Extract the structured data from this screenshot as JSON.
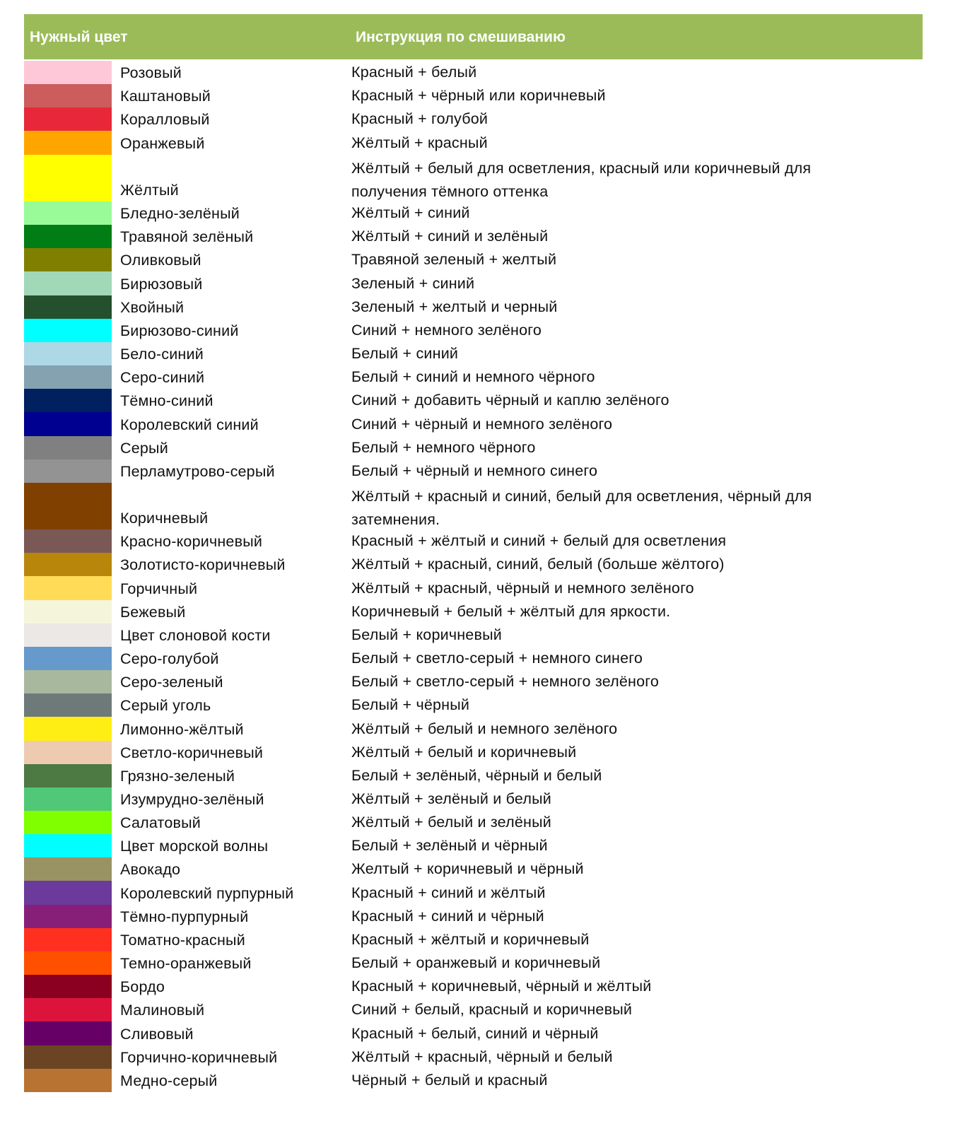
{
  "header": {
    "col1": "Нужный цвет",
    "col2": "Инструкция по смешиванию",
    "color": "#9BBB59"
  },
  "rows": [
    {
      "name": "Розовый",
      "instr": "Красный + белый",
      "color": "#FFC8D8"
    },
    {
      "name": "Каштановый",
      "instr": "Красный + чёрный или коричневый",
      "color": "#CD5C5C"
    },
    {
      "name": "Коралловый",
      "instr": "Красный + голубой",
      "color": "#E8283A"
    },
    {
      "name": "Оранжевый",
      "instr": "Жёлтый + красный",
      "color": "#FFA500"
    },
    {
      "name": "Жёлтый",
      "instr": "Жёлтый + белый для осветления, красный или коричневый для получения тёмного оттенка",
      "color": "#FFFF00",
      "double": true
    },
    {
      "name": "Бледно-зелёный",
      "instr": "Жёлтый + синий",
      "color": "#98FB98"
    },
    {
      "name": "Травяной зелёный",
      "instr": "Жёлтый + синий и зелёный",
      "color": "#007D14"
    },
    {
      "name": "Оливковый",
      "instr": "Травяной зеленый + желтый",
      "color": "#808000"
    },
    {
      "name": "Бирюзовый",
      "instr": "Зеленый + синий",
      "color": "#A0D8B8"
    },
    {
      "name": "Хвойный",
      "instr": "Зеленый + желтый и черный",
      "color": "#25502D"
    },
    {
      "name": "Бирюзово-синий",
      "instr": "Синий + немного зелёного",
      "color": "#00FFFF"
    },
    {
      "name": "Бело-синий",
      "instr": "Белый + синий",
      "color": "#ADD8E6"
    },
    {
      "name": "Серо-синий",
      "instr": "Белый + синий и немного чёрного",
      "color": "#84A2B0"
    },
    {
      "name": "Тёмно-синий",
      "instr": "Синий + добавить чёрный и каплю зелёного",
      "color": "#002060"
    },
    {
      "name": "Королевский синий",
      "instr": "Синий + чёрный и немного зелёного",
      "color": "#000090"
    },
    {
      "name": "Серый",
      "instr": "Белый + немного чёрного",
      "color": "#808080"
    },
    {
      "name": "Перламутрово-серый",
      "instr": "Белый + чёрный и немного синего",
      "color": "#939393"
    },
    {
      "name": "Коричневый",
      "instr": "Жёлтый + красный и синий, белый для осветления, чёрный для затемнения.",
      "color": "#804000",
      "double": true
    },
    {
      "name": "Красно-коричневый",
      "instr": "Красный + жёлтый и синий + белый для осветления",
      "color": "#7A5856"
    },
    {
      "name": "Золотисто-коричневый",
      "instr": "Жёлтый + красный, синий, белый (больше жёлтого)",
      "color": "#B8860B"
    },
    {
      "name": "Горчичный",
      "instr": "Жёлтый + красный, чёрный и немного зелёного",
      "color": "#FFDB58"
    },
    {
      "name": "Бежевый",
      "instr": "Коричневый + белый + жёлтый для яркости.",
      "color": "#F5F5DC"
    },
    {
      "name": "Цвет слоновой кости",
      "instr": "Белый + коричневый",
      "color": "#ECE8E6"
    },
    {
      "name": "Серо-голубой",
      "instr": "Белый + светло-серый + немного синего",
      "color": "#6699CC"
    },
    {
      "name": "Серо-зеленый",
      "instr": "Белый + светло-серый + немного зелёного",
      "color": "#A8B89E"
    },
    {
      "name": "Серый уголь",
      "instr": "Белый + чёрный",
      "color": "#6E7A7A"
    },
    {
      "name": "Лимонно-жёлтый",
      "instr": "Жёлтый + белый и немного зелёного",
      "color": "#FFEE14"
    },
    {
      "name": "Светло-коричневый",
      "instr": "Жёлтый + белый и коричневый",
      "color": "#EECBB0"
    },
    {
      "name": "Грязно-зеленый",
      "instr": "Белый + зелёный, чёрный и белый",
      "color": "#4C7A42"
    },
    {
      "name": "Изумрудно-зелёный",
      "instr": "Жёлтый + зелёный и белый",
      "color": "#50C878"
    },
    {
      "name": "Салатовый",
      "instr": "Жёлтый + белый и зелёный",
      "color": "#7FFF00"
    },
    {
      "name": "Цвет морской волны",
      "instr": "Белый + зелёный и чёрный",
      "color": "#00FFFF"
    },
    {
      "name": "Авокадо",
      "instr": "Желтый + коричневый и чёрный",
      "color": "#999364"
    },
    {
      "name": "Королевский пурпурный",
      "instr": "Красный + синий и жёлтый",
      "color": "#6B3A9B"
    },
    {
      "name": "Тёмно-пурпурный",
      "instr": "Красный + синий и чёрный",
      "color": "#871F78"
    },
    {
      "name": "Томатно-красный",
      "instr": "Красный + жёлтый и коричневый",
      "color": "#FF3020"
    },
    {
      "name": "Темно-оранжевый",
      "instr": "Белый + оранжевый и коричневый",
      "color": "#FF5000"
    },
    {
      "name": "Бордо",
      "instr": "Красный + коричневый, чёрный и жёлтый",
      "color": "#8B0020"
    },
    {
      "name": "Малиновый",
      "instr": "Синий + белый, красный и коричневый",
      "color": "#DC143C"
    },
    {
      "name": "Сливовый",
      "instr": "Красный + белый, синий и чёрный",
      "color": "#660066"
    },
    {
      "name": "Горчично-коричневый",
      "instr": "Жёлтый + красный, чёрный и белый",
      "color": "#6B4423"
    },
    {
      "name": "Медно-серый",
      "instr": "Чёрный + белый и красный",
      "color": "#B87333"
    }
  ]
}
